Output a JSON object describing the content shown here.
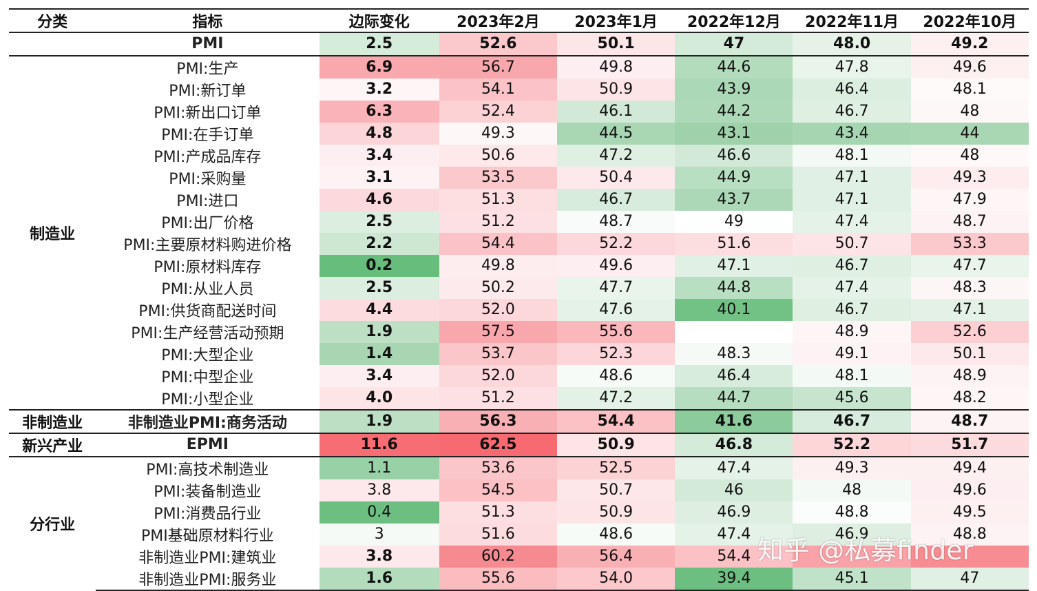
{
  "headers": [
    "分类",
    "指标",
    "边际变化",
    "2023年2月",
    "2023年1月",
    "2022年12月",
    "2022年11月",
    "2022年10月"
  ],
  "groups": [
    {
      "category": "",
      "rows": [
        {
          "name": "PMI",
          "bold": true,
          "values": [
            "2.5",
            "52.6",
            "50.1",
            "47",
            "48.0",
            "49.2"
          ],
          "colors": [
            "#d6ecdb",
            "#fbc8cc",
            "#fde6e8",
            "#d4ebda",
            "#e6f2e8",
            "#fdf0f1"
          ]
        }
      ]
    },
    {
      "category": "制造业",
      "rows": [
        {
          "name": "PMI:生产",
          "bold_change": true,
          "values": [
            "6.9",
            "56.7",
            "49.8",
            "44.6",
            "47.8",
            "49.6"
          ],
          "colors": [
            "#f9a9ae",
            "#f8a7ad",
            "#fdeff1",
            "#b3dcbd",
            "#e9f4eb",
            "#fdf0f1"
          ]
        },
        {
          "name": "PMI:新订单",
          "bold_change": true,
          "values": [
            "3.2",
            "54.1",
            "50.9",
            "43.9",
            "46.4",
            "48.1"
          ],
          "colors": [
            "#fdf5f6",
            "#fbc3c7",
            "#fde5e7",
            "#abd8b6",
            "#dbeedf",
            "#fffafa"
          ]
        },
        {
          "name": "PMI:新出口订单",
          "bold_change": true,
          "values": [
            "6.3",
            "52.4",
            "46.1",
            "44.2",
            "46.7",
            "48"
          ],
          "colors": [
            "#fab3b8",
            "#fcd2d5",
            "#d1e9d6",
            "#aed9b9",
            "#dff0e3",
            "#fdf7f8"
          ]
        },
        {
          "name": "PMI:在手订单",
          "bold_change": true,
          "values": [
            "4.8",
            "49.3",
            "44.5",
            "43.1",
            "43.4",
            "44"
          ],
          "colors": [
            "#fcd5d8",
            "#fef7f8",
            "#a9d7b4",
            "#9fd2ab",
            "#a6d6b1",
            "#a9d7b4"
          ]
        },
        {
          "name": "PMI:产成品库存",
          "bold_change": true,
          "values": [
            "3.4",
            "50.6",
            "47.2",
            "46.6",
            "48.1",
            "48"
          ],
          "colors": [
            "#fdeff1",
            "#fde8ea",
            "#dff0e3",
            "#d2e9d7",
            "#f3f9f4",
            "#fef8f8"
          ]
        },
        {
          "name": "PMI:采购量",
          "bold_change": true,
          "values": [
            "3.1",
            "53.5",
            "50.4",
            "44.9",
            "47.1",
            "49.3"
          ],
          "colors": [
            "#fdf3f4",
            "#fbc8cc",
            "#fde9eb",
            "#b9dfc2",
            "#e0f0e4",
            "#fdedef"
          ]
        },
        {
          "name": "PMI:进口",
          "bold_change": true,
          "values": [
            "4.6",
            "51.3",
            "46.7",
            "43.7",
            "47.1",
            "47.9"
          ],
          "colors": [
            "#fcd9dc",
            "#fddfe2",
            "#d7ecdc",
            "#acd8b7",
            "#e0f0e4",
            "#fdf5f6"
          ]
        },
        {
          "name": "PMI:出厂价格",
          "bold_change": true,
          "values": [
            "2.5",
            "51.2",
            "48.7",
            "49",
            "47.4",
            "48.7"
          ],
          "colors": [
            "#dbeedf",
            "#fde0e3",
            "#f8fbf9",
            "#ffffff",
            "#e5f2e8",
            "#fdf3f4"
          ]
        },
        {
          "name": "PMI:主要原材料购进价格",
          "bold_change": true,
          "values": [
            "2.2",
            "54.4",
            "52.2",
            "51.6",
            "50.7",
            "53.3"
          ],
          "colors": [
            "#cde7d3",
            "#fbc3c7",
            "#fcd8db",
            "#fcdde0",
            "#fde5e7",
            "#fbc8cc"
          ]
        },
        {
          "name": "PMI:原材料库存",
          "bold_change": true,
          "values": [
            "0.2",
            "49.8",
            "49.6",
            "47.1",
            "46.7",
            "47.7"
          ],
          "colors": [
            "#67bd7c",
            "#fdedef",
            "#fdeff1",
            "#e0f0e4",
            "#dff0e3",
            "#e9f4eb"
          ]
        },
        {
          "name": "PMI:从业人员",
          "bold_change": true,
          "values": [
            "2.5",
            "50.2",
            "47.7",
            "44.8",
            "47.4",
            "48.3"
          ],
          "colors": [
            "#dbeedf",
            "#fdeaec",
            "#e9f4eb",
            "#b9dfc2",
            "#e5f2e8",
            "#fdf5f6"
          ]
        },
        {
          "name": "PMI:供货商配送时间",
          "bold_change": true,
          "values": [
            "4.4",
            "52.0",
            "47.6",
            "40.1",
            "46.7",
            "47.1"
          ],
          "colors": [
            "#fcdcdf",
            "#fdd8db",
            "#e5f2e8",
            "#72c285",
            "#dff0e3",
            "#e3f1e6"
          ]
        },
        {
          "name": "PMI:生产经营活动预期",
          "bold_change": true,
          "values": [
            "1.9",
            "57.5",
            "55.6",
            "",
            "48.9",
            "52.6"
          ],
          "colors": [
            "#bde0c5",
            "#f8a7ad",
            "#fab8bc",
            "#ffffff",
            "#fdf5f6",
            "#fcd0d3"
          ]
        },
        {
          "name": "PMI:大型企业",
          "bold_change": true,
          "values": [
            "1.4",
            "53.7",
            "52.3",
            "48.3",
            "49.1",
            "50.1"
          ],
          "colors": [
            "#a8d6b3",
            "#fbc6ca",
            "#fcd6d9",
            "#f5faf6",
            "#fdf3f4",
            "#fde9eb"
          ]
        },
        {
          "name": "PMI:中型企业",
          "bold_change": true,
          "values": [
            "3.4",
            "52.0",
            "48.6",
            "46.4",
            "48.1",
            "48.9"
          ],
          "colors": [
            "#fdeff1",
            "#fdd8db",
            "#f7fbf8",
            "#d7ecdc",
            "#f3f9f4",
            "#fdf3f4"
          ]
        },
        {
          "name": "PMI:小型企业",
          "bold_change": true,
          "values": [
            "4.0",
            "51.2",
            "47.2",
            "44.7",
            "45.6",
            "48.2"
          ],
          "colors": [
            "#fde4e6",
            "#fde0e3",
            "#e3f1e6",
            "#b6ddbf",
            "#c7e5ce",
            "#fdf5f6"
          ]
        }
      ]
    },
    {
      "category": "非制造业",
      "rows": [
        {
          "name": "非制造业PMI:商务活动",
          "bold": true,
          "values": [
            "1.9",
            "56.3",
            "54.4",
            "41.6",
            "46.7",
            "48.7"
          ],
          "colors": [
            "#bde0c5",
            "#f9b0b5",
            "#fbc1c5",
            "#8ccb9b",
            "#d7ecdc",
            "#fdf3f4"
          ]
        }
      ]
    },
    {
      "category": "新兴产业",
      "rows": [
        {
          "name": "EPMI",
          "bold": true,
          "values": [
            "11.6",
            "62.5",
            "50.9",
            "46.8",
            "52.2",
            "51.7"
          ],
          "colors": [
            "#f76d74",
            "#f76a71",
            "#fde5e7",
            "#d5ebda",
            "#fcd6d9",
            "#fcdbde"
          ]
        }
      ]
    },
    {
      "category": "分行业",
      "rows": [
        {
          "name": "PMI:高技术制造业",
          "values": [
            "1.1",
            "53.6",
            "52.5",
            "47.4",
            "49.3",
            "49.4"
          ],
          "colors": [
            "#99d1a6",
            "#fbc6ca",
            "#fcd2d5",
            "#e5f2e8",
            "#fdf0f1",
            "#fdf0f1"
          ]
        },
        {
          "name": "PMI:装备制造业",
          "values": [
            "3.8",
            "54.5",
            "50.7",
            "46",
            "48",
            "49.6"
          ],
          "colors": [
            "#fde9eb",
            "#fbc1c5",
            "#fde7e9",
            "#d3eaD8",
            "#f3f9f4",
            "#fdeff1"
          ]
        },
        {
          "name": "PMI:消费品行业",
          "values": [
            "0.4",
            "51.3",
            "50.9",
            "46.9",
            "48.8",
            "49.5"
          ],
          "colors": [
            "#6cbf80",
            "#fddfe2",
            "#fde5e7",
            "#deefe2",
            "#fafdfb",
            "#fdf0f1"
          ]
        },
        {
          "name": "PMI基础原材料行业",
          "values": [
            "3",
            "51.6",
            "48.6",
            "47.4",
            "46.9",
            "48.8"
          ],
          "colors": [
            "#f5faf6",
            "#fddce0",
            "#f7fbf8",
            "#e5f2e8",
            "#deefe2",
            "#fdf3f4"
          ]
        },
        {
          "name": "非制造业PMI:建筑业",
          "bold_change": true,
          "values": [
            "3.8",
            "60.2",
            "56.4",
            "54.4",
            "",
            ""
          ],
          "colors": [
            "#fde9eb",
            "#f68a91",
            "#f9b0b5",
            "#fbc1c5",
            "#f9a2a8",
            "#f88c93"
          ]
        },
        {
          "name": "非制造业PMI:服务业",
          "bold_change": true,
          "values": [
            "1.6",
            "55.6",
            "54.0",
            "39.4",
            "45.1",
            "47"
          ],
          "colors": [
            "#b3dcbd",
            "#fbbcc0",
            "#fcc8cc",
            "#6cbf80",
            "#c0e2c8",
            "#e0f0e4"
          ]
        }
      ]
    }
  ],
  "watermark": "知乎 @私募finder"
}
